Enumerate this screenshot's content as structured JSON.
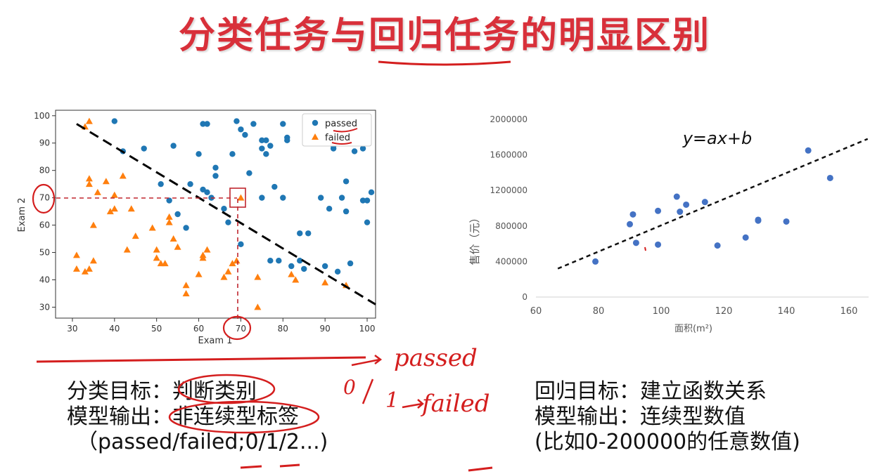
{
  "title": "分类任务与回归任务的明显区别",
  "chart_data": [
    {
      "type": "scatter",
      "xlabel": "Exam 1",
      "ylabel": "Exam 2",
      "xlim": [
        26,
        102
      ],
      "ylim": [
        26,
        102
      ],
      "xticks": [
        30,
        40,
        50,
        60,
        70,
        80,
        90,
        100
      ],
      "yticks": [
        30,
        40,
        50,
        60,
        70,
        80,
        90,
        100
      ],
      "legend_position": "top-right",
      "series": [
        {
          "name": "passed",
          "color": "#1f77b4",
          "marker": "circle",
          "points": [
            [
              40,
              98
            ],
            [
              42,
              87
            ],
            [
              47,
              88
            ],
            [
              51,
              75
            ],
            [
              53,
              69
            ],
            [
              54,
              89
            ],
            [
              55,
              64
            ],
            [
              57,
              59
            ],
            [
              58,
              75
            ],
            [
              60,
              86
            ],
            [
              61,
              97
            ],
            [
              61,
              73
            ],
            [
              62,
              97
            ],
            [
              62,
              72
            ],
            [
              63,
              70
            ],
            [
              64,
              81
            ],
            [
              64,
              78
            ],
            [
              66,
              66
            ],
            [
              67,
              61
            ],
            [
              68,
              86
            ],
            [
              69,
              98
            ],
            [
              70,
              53
            ],
            [
              70,
              95
            ],
            [
              71,
              93
            ],
            [
              72,
              79
            ],
            [
              73,
              97
            ],
            [
              75,
              88
            ],
            [
              75,
              91
            ],
            [
              75,
              70
            ],
            [
              76,
              86
            ],
            [
              76,
              91
            ],
            [
              77,
              89
            ],
            [
              77,
              47
            ],
            [
              79,
              47
            ],
            [
              78,
              74
            ],
            [
              80,
              97
            ],
            [
              80,
              70
            ],
            [
              81,
              92
            ],
            [
              81,
              91
            ],
            [
              82,
              45
            ],
            [
              84,
              57
            ],
            [
              84,
              47
            ],
            [
              85,
              44
            ],
            [
              86,
              57
            ],
            [
              89,
              70
            ],
            [
              90,
              45
            ],
            [
              91,
              66
            ],
            [
              92,
              89
            ],
            [
              92,
              88
            ],
            [
              93,
              43
            ],
            [
              94,
              70
            ],
            [
              95,
              76
            ],
            [
              95,
              65
            ],
            [
              96,
              46
            ],
            [
              99,
              88
            ],
            [
              99,
              69
            ],
            [
              100,
              61
            ],
            [
              100,
              69
            ],
            [
              101,
              72
            ],
            [
              97,
              87
            ]
          ]
        },
        {
          "name": "failed",
          "color": "#ff7f0e",
          "marker": "triangle",
          "points": [
            [
              31,
              49
            ],
            [
              31,
              44
            ],
            [
              33,
              96
            ],
            [
              33,
              43
            ],
            [
              34,
              98
            ],
            [
              34,
              44
            ],
            [
              34,
              75
            ],
            [
              34,
              77
            ],
            [
              35,
              60
            ],
            [
              35,
              47
            ],
            [
              36,
              72
            ],
            [
              38,
              76
            ],
            [
              39,
              65
            ],
            [
              40,
              71
            ],
            [
              42,
              78
            ],
            [
              44,
              66
            ],
            [
              45,
              56
            ],
            [
              49,
              59
            ],
            [
              50,
              51
            ],
            [
              50,
              48
            ],
            [
              51,
              46
            ],
            [
              52,
              46
            ],
            [
              53,
              63
            ],
            [
              53,
              61
            ],
            [
              54,
              55
            ],
            [
              55,
              52
            ],
            [
              57,
              35
            ],
            [
              57,
              38
            ],
            [
              60,
              42
            ],
            [
              61,
              49
            ],
            [
              61,
              48
            ],
            [
              62,
              51
            ],
            [
              66,
              41
            ],
            [
              67,
              43
            ],
            [
              69,
              47
            ],
            [
              68,
              46
            ],
            [
              70,
              70
            ],
            [
              74,
              41
            ],
            [
              74,
              30
            ],
            [
              82,
              42
            ],
            [
              83,
              40
            ],
            [
              90,
              39
            ],
            [
              95,
              38
            ],
            [
              40,
              66
            ],
            [
              43,
              51
            ]
          ]
        }
      ],
      "decision_boundary": {
        "x": [
          31,
          102
        ],
        "y": [
          97,
          31
        ]
      }
    },
    {
      "type": "scatter",
      "title": "y=ax+b",
      "xlabel": "面积(m²)",
      "ylabel": "售价（元）",
      "xlim": [
        60,
        160
      ],
      "ylim": [
        0,
        2000000
      ],
      "xticks": [
        60,
        80,
        100,
        120,
        140,
        160
      ],
      "yticks": [
        0,
        400000,
        800000,
        1200000,
        1600000,
        2000000
      ],
      "series": [
        {
          "name": "",
          "color": "#4472c4",
          "marker": "circle",
          "points": [
            [
              79,
              400000
            ],
            [
              90,
              820000
            ],
            [
              91,
              930000
            ],
            [
              92,
              610000
            ],
            [
              99,
              970000
            ],
            [
              99,
              590000
            ],
            [
              105,
              1130000
            ],
            [
              106,
              960000
            ],
            [
              108,
              1040000
            ],
            [
              114,
              1070000
            ],
            [
              118,
              580000
            ],
            [
              127,
              670000
            ],
            [
              131,
              860000
            ],
            [
              131,
              870000
            ],
            [
              140,
              850000
            ],
            [
              147,
              1650000
            ],
            [
              154,
              1340000
            ]
          ]
        }
      ],
      "trendline": {
        "x": [
          67,
          166
        ],
        "y": [
          320000,
          1780000
        ]
      }
    }
  ],
  "classification_text": {
    "goal_prefix": "分类目标：",
    "goal_value": "判断类别",
    "output_prefix": "模型输出：",
    "output_value": "非连续型标签",
    "example": "（passed/failed;0/1/2...)"
  },
  "regression_text": {
    "goal": "回归目标：建立函数关系",
    "output": "模型输出：连续型数值",
    "example": "(比如0-200000的任意数值)"
  },
  "annotations": {
    "passed": "passed",
    "failed": "failed",
    "zero": "0",
    "one": "1",
    "seventy_x": "70",
    "seventy_y": "70"
  },
  "colors": {
    "title": "#d8303a",
    "ink": "#d41e1e",
    "passed": "#1f77b4",
    "failed": "#ff7f0e",
    "regression_points": "#4472c4"
  }
}
